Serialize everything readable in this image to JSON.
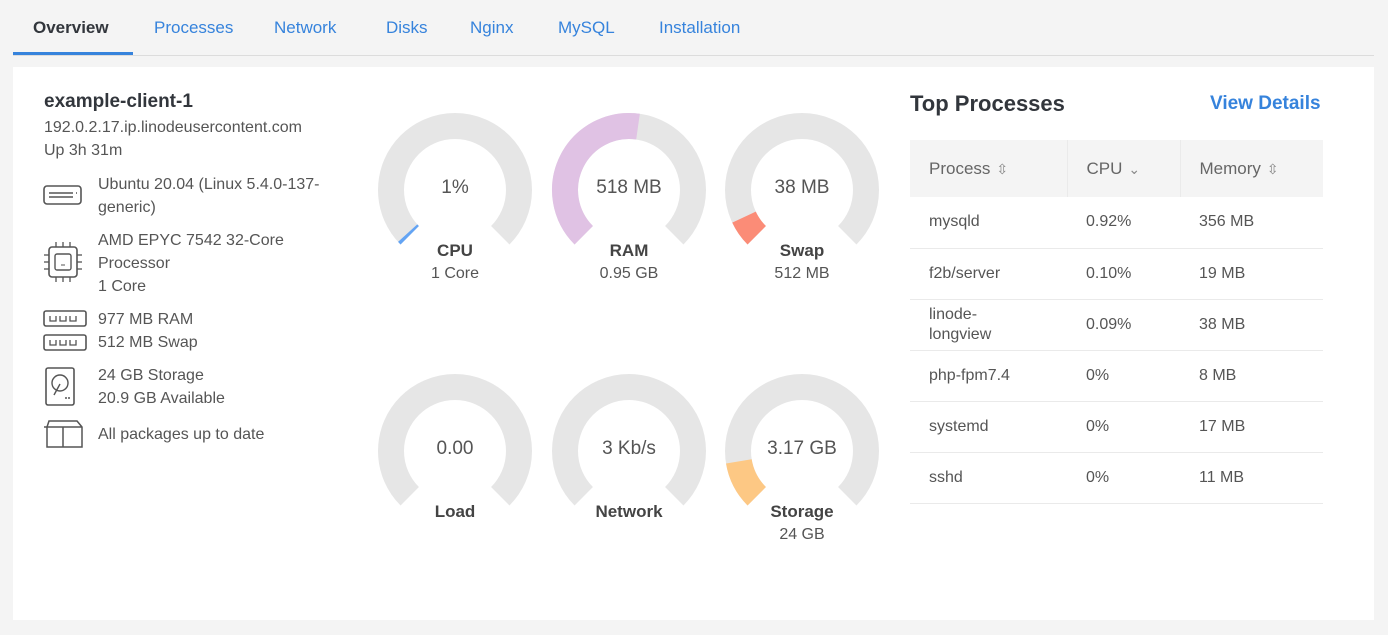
{
  "tabs": [
    "Overview",
    "Processes",
    "Network",
    "Disks",
    "Nginx",
    "MySQL",
    "Installation"
  ],
  "host": {
    "name": "example-client-1",
    "address": "192.0.2.17.ip.linodeusercontent.com",
    "uptime": "Up 3h 31m"
  },
  "specs": {
    "os": [
      "Ubuntu 20.04 (Linux 5.4.0-137-",
      "generic)"
    ],
    "cpu": [
      "AMD EPYC 7542 32-Core",
      "Processor",
      "1 Core"
    ],
    "ram": "977 MB RAM",
    "swap": "512 MB Swap",
    "storage": [
      "24 GB Storage",
      "20.9 GB Available"
    ],
    "packages": "All packages up to date"
  },
  "gauges": [
    {
      "id": "cpu",
      "value": "1%",
      "label": "CPU",
      "sub": "1 Core",
      "fraction": 0.01,
      "color": "#63a4f4"
    },
    {
      "id": "ram",
      "value": "518 MB",
      "label": "RAM",
      "sub": "0.95 GB",
      "fraction": 0.53,
      "color": "#e0c2e4"
    },
    {
      "id": "swap",
      "value": "38 MB",
      "label": "Swap",
      "sub": "512 MB",
      "fraction": 0.074,
      "color": "#fb8c77"
    },
    {
      "id": "load",
      "value": "0.00",
      "label": "Load",
      "sub": "",
      "fraction": 0,
      "color": "#63a4f4"
    },
    {
      "id": "network",
      "value": "3 Kb/s",
      "label": "Network",
      "sub": "",
      "fraction": 0,
      "color": "#63a4f4"
    },
    {
      "id": "storage",
      "value": "3.17 GB",
      "label": "Storage",
      "sub": "24 GB",
      "fraction": 0.132,
      "color": "#fdc884"
    }
  ],
  "top_processes": {
    "title": "Top Processes",
    "link": "View Details",
    "columns": [
      "Process",
      "CPU",
      "Memory"
    ],
    "rows": [
      [
        "mysqld",
        "0.92%",
        "356 MB"
      ],
      [
        "f2b/server",
        "0.10%",
        "19 MB"
      ],
      [
        "linode-longview",
        "0.09%",
        "38 MB"
      ],
      [
        "php-fpm7.4",
        "0%",
        "8 MB"
      ],
      [
        "systemd",
        "0%",
        "17 MB"
      ],
      [
        "sshd",
        "0%",
        "11 MB"
      ]
    ]
  }
}
